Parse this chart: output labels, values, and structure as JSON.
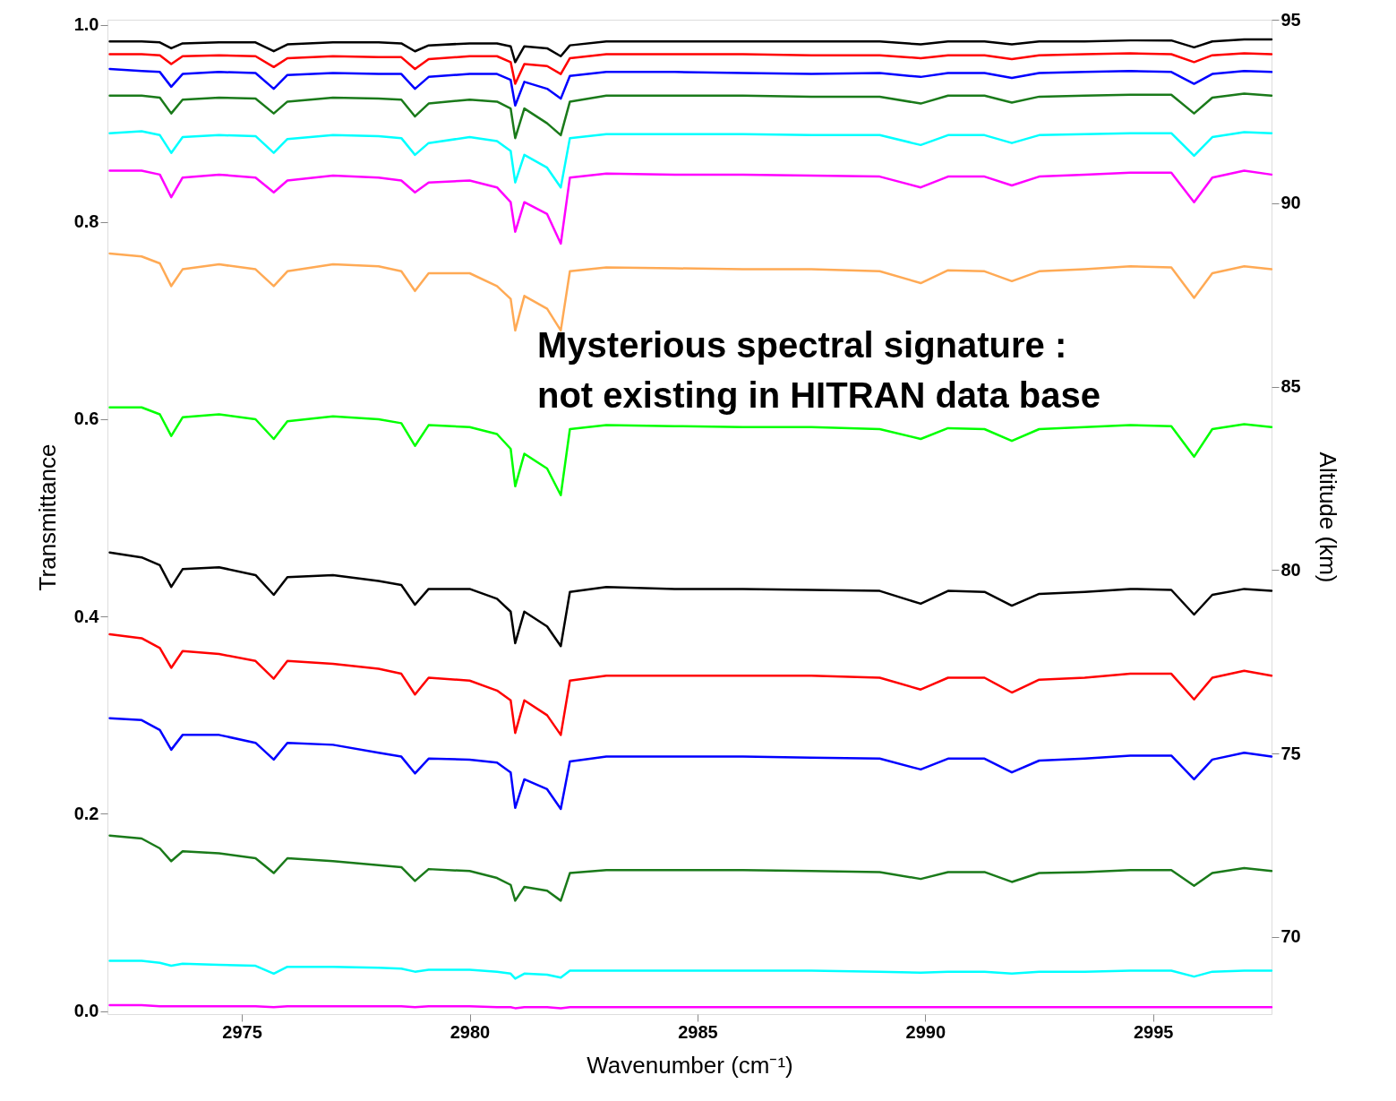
{
  "chart_data": {
    "type": "line",
    "xlabel": "Wavenumber (cm⁻¹)",
    "ylabel": "Transmittance",
    "y2label": "Altitude (km)",
    "annotations": [
      "Mysterious spectral signature :\nnot existing in HITRAN data base"
    ],
    "xlim": [
      2972.05,
      2997.6
    ],
    "xticks": [
      2975,
      2980,
      2985,
      2990,
      2995
    ],
    "ylim": [
      -0.003,
      1.005
    ],
    "yticks": [
      {
        "value": 0,
        "label": "0.0"
      },
      0.2,
      0.4,
      0.6,
      0.8,
      {
        "value": 1,
        "label": "1.0"
      }
    ],
    "y2lim": [
      67.9,
      95.0
    ],
    "y2ticks": [
      95,
      90,
      85,
      80,
      75,
      70
    ],
    "grid": false,
    "legend": false,
    "line_style": "solid",
    "x": [
      2972.1,
      2972.8,
      2973.2,
      2973.45,
      2973.7,
      2974.5,
      2975.3,
      2975.7,
      2976.0,
      2977.0,
      2978.0,
      2978.5,
      2978.8,
      2979.1,
      2980.0,
      2980.6,
      2980.9,
      2981.0,
      2981.2,
      2981.7,
      2982.0,
      2982.2,
      2983.0,
      2984.5,
      2986.0,
      2987.5,
      2989.0,
      2989.9,
      2990.5,
      2991.3,
      2991.9,
      2992.5,
      2993.5,
      2994.5,
      2995.4,
      2995.9,
      2996.3,
      2997.0,
      2997.6
    ],
    "series": [
      {
        "color": "#000000",
        "values": [
          0.983,
          0.983,
          0.982,
          0.976,
          0.981,
          0.982,
          0.982,
          0.973,
          0.98,
          0.982,
          0.982,
          0.981,
          0.973,
          0.979,
          0.981,
          0.981,
          0.978,
          0.962,
          0.978,
          0.976,
          0.968,
          0.979,
          0.983,
          0.983,
          0.983,
          0.983,
          0.983,
          0.98,
          0.983,
          0.983,
          0.98,
          0.983,
          0.983,
          0.984,
          0.984,
          0.977,
          0.983,
          0.985,
          0.985
        ]
      },
      {
        "color": "#ff0000",
        "values": [
          0.97,
          0.97,
          0.969,
          0.96,
          0.968,
          0.969,
          0.968,
          0.957,
          0.966,
          0.968,
          0.967,
          0.967,
          0.955,
          0.965,
          0.968,
          0.968,
          0.962,
          0.94,
          0.96,
          0.958,
          0.95,
          0.966,
          0.97,
          0.97,
          0.97,
          0.969,
          0.969,
          0.966,
          0.969,
          0.969,
          0.965,
          0.969,
          0.97,
          0.971,
          0.97,
          0.962,
          0.969,
          0.971,
          0.97
        ]
      },
      {
        "color": "#0000ff",
        "values": [
          0.955,
          0.953,
          0.952,
          0.937,
          0.95,
          0.952,
          0.951,
          0.935,
          0.949,
          0.951,
          0.95,
          0.95,
          0.935,
          0.947,
          0.95,
          0.95,
          0.944,
          0.918,
          0.942,
          0.935,
          0.925,
          0.948,
          0.952,
          0.952,
          0.951,
          0.95,
          0.951,
          0.947,
          0.951,
          0.951,
          0.946,
          0.951,
          0.952,
          0.953,
          0.952,
          0.94,
          0.95,
          0.953,
          0.952
        ]
      },
      {
        "color": "#1a7a1a",
        "values": [
          0.928,
          0.928,
          0.926,
          0.91,
          0.924,
          0.926,
          0.925,
          0.91,
          0.922,
          0.926,
          0.925,
          0.924,
          0.907,
          0.92,
          0.924,
          0.922,
          0.915,
          0.885,
          0.915,
          0.9,
          0.888,
          0.922,
          0.928,
          0.928,
          0.928,
          0.927,
          0.927,
          0.92,
          0.928,
          0.928,
          0.921,
          0.927,
          0.928,
          0.929,
          0.929,
          0.91,
          0.926,
          0.93,
          0.928
        ]
      },
      {
        "color": "#00ffff",
        "values": [
          0.89,
          0.892,
          0.888,
          0.87,
          0.886,
          0.888,
          0.887,
          0.87,
          0.884,
          0.888,
          0.887,
          0.885,
          0.868,
          0.88,
          0.886,
          0.882,
          0.872,
          0.84,
          0.868,
          0.855,
          0.835,
          0.885,
          0.889,
          0.889,
          0.889,
          0.888,
          0.888,
          0.878,
          0.888,
          0.888,
          0.88,
          0.888,
          0.889,
          0.89,
          0.89,
          0.867,
          0.886,
          0.891,
          0.89
        ]
      },
      {
        "color": "#ff00ff",
        "values": [
          0.852,
          0.852,
          0.848,
          0.825,
          0.845,
          0.848,
          0.845,
          0.83,
          0.842,
          0.847,
          0.845,
          0.842,
          0.83,
          0.84,
          0.842,
          0.835,
          0.82,
          0.79,
          0.82,
          0.808,
          0.778,
          0.845,
          0.849,
          0.848,
          0.848,
          0.847,
          0.846,
          0.835,
          0.846,
          0.846,
          0.837,
          0.846,
          0.848,
          0.85,
          0.85,
          0.82,
          0.845,
          0.852,
          0.848
        ]
      },
      {
        "color": "#ffaa55",
        "values": [
          0.768,
          0.765,
          0.758,
          0.735,
          0.752,
          0.757,
          0.752,
          0.735,
          0.75,
          0.757,
          0.755,
          0.75,
          0.73,
          0.748,
          0.748,
          0.735,
          0.722,
          0.69,
          0.725,
          0.712,
          0.69,
          0.75,
          0.754,
          0.753,
          0.752,
          0.752,
          0.75,
          0.738,
          0.751,
          0.75,
          0.74,
          0.75,
          0.752,
          0.755,
          0.754,
          0.723,
          0.748,
          0.755,
          0.752
        ]
      },
      {
        "color": "#00ff00",
        "values": [
          0.612,
          0.612,
          0.605,
          0.583,
          0.602,
          0.605,
          0.6,
          0.58,
          0.598,
          0.603,
          0.6,
          0.596,
          0.573,
          0.594,
          0.592,
          0.585,
          0.57,
          0.532,
          0.565,
          0.55,
          0.523,
          0.59,
          0.594,
          0.593,
          0.592,
          0.592,
          0.59,
          0.58,
          0.591,
          0.59,
          0.578,
          0.59,
          0.592,
          0.594,
          0.593,
          0.562,
          0.59,
          0.595,
          0.592
        ]
      },
      {
        "color": "#000000",
        "values": [
          0.465,
          0.46,
          0.452,
          0.43,
          0.448,
          0.45,
          0.442,
          0.422,
          0.44,
          0.442,
          0.436,
          0.432,
          0.412,
          0.428,
          0.428,
          0.418,
          0.405,
          0.373,
          0.405,
          0.39,
          0.37,
          0.425,
          0.43,
          0.428,
          0.428,
          0.427,
          0.426,
          0.413,
          0.426,
          0.425,
          0.411,
          0.423,
          0.425,
          0.428,
          0.427,
          0.402,
          0.422,
          0.428,
          0.426
        ]
      },
      {
        "color": "#ff0000",
        "values": [
          0.382,
          0.378,
          0.368,
          0.348,
          0.365,
          0.362,
          0.355,
          0.337,
          0.355,
          0.352,
          0.347,
          0.342,
          0.321,
          0.338,
          0.335,
          0.325,
          0.315,
          0.282,
          0.315,
          0.3,
          0.28,
          0.335,
          0.34,
          0.34,
          0.34,
          0.34,
          0.338,
          0.326,
          0.338,
          0.338,
          0.323,
          0.336,
          0.338,
          0.342,
          0.342,
          0.316,
          0.338,
          0.345,
          0.34
        ]
      },
      {
        "color": "#0000ff",
        "values": [
          0.297,
          0.295,
          0.285,
          0.265,
          0.28,
          0.28,
          0.272,
          0.255,
          0.272,
          0.27,
          0.262,
          0.258,
          0.241,
          0.256,
          0.255,
          0.252,
          0.242,
          0.206,
          0.235,
          0.225,
          0.205,
          0.253,
          0.258,
          0.258,
          0.258,
          0.257,
          0.256,
          0.245,
          0.256,
          0.256,
          0.242,
          0.254,
          0.256,
          0.259,
          0.259,
          0.235,
          0.255,
          0.262,
          0.258
        ]
      },
      {
        "color": "#1a7a1a",
        "values": [
          0.178,
          0.175,
          0.165,
          0.152,
          0.162,
          0.16,
          0.155,
          0.14,
          0.155,
          0.152,
          0.148,
          0.146,
          0.132,
          0.144,
          0.142,
          0.135,
          0.128,
          0.112,
          0.126,
          0.122,
          0.112,
          0.14,
          0.143,
          0.143,
          0.143,
          0.142,
          0.141,
          0.134,
          0.141,
          0.141,
          0.131,
          0.14,
          0.141,
          0.143,
          0.143,
          0.127,
          0.14,
          0.145,
          0.142
        ]
      },
      {
        "color": "#00ffff",
        "values": [
          0.051,
          0.051,
          0.049,
          0.046,
          0.048,
          0.047,
          0.046,
          0.038,
          0.045,
          0.045,
          0.044,
          0.043,
          0.04,
          0.042,
          0.042,
          0.04,
          0.038,
          0.033,
          0.038,
          0.037,
          0.034,
          0.041,
          0.041,
          0.041,
          0.041,
          0.041,
          0.04,
          0.039,
          0.04,
          0.04,
          0.038,
          0.04,
          0.04,
          0.041,
          0.041,
          0.035,
          0.04,
          0.041,
          0.041
        ]
      },
      {
        "color": "#ff00ff",
        "values": [
          0.006,
          0.006,
          0.005,
          0.005,
          0.005,
          0.005,
          0.005,
          0.004,
          0.005,
          0.005,
          0.005,
          0.005,
          0.004,
          0.005,
          0.005,
          0.004,
          0.004,
          0.003,
          0.004,
          0.004,
          0.003,
          0.004,
          0.004,
          0.004,
          0.004,
          0.004,
          0.004,
          0.004,
          0.004,
          0.004,
          0.004,
          0.004,
          0.004,
          0.004,
          0.004,
          0.004,
          0.004,
          0.004,
          0.004
        ]
      }
    ]
  }
}
